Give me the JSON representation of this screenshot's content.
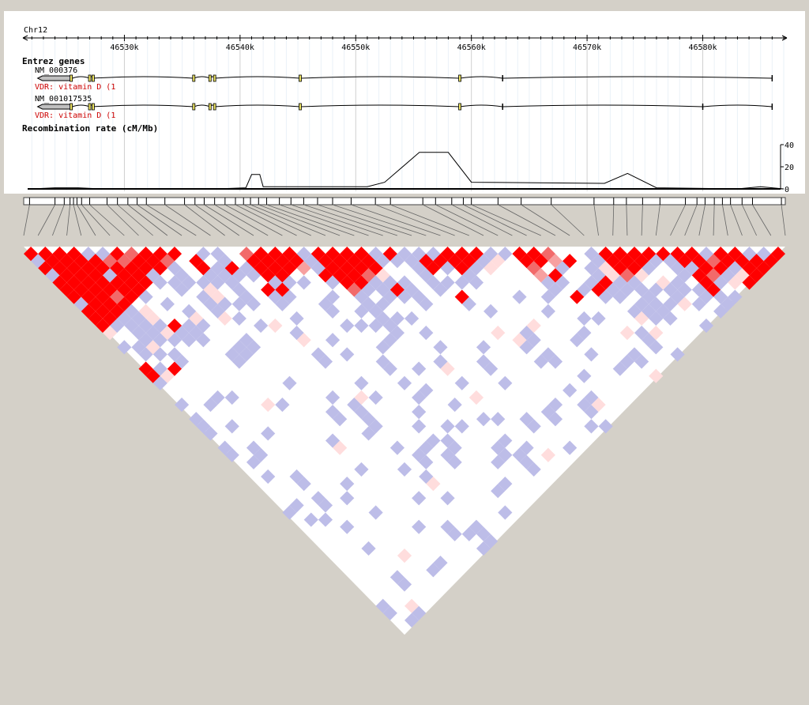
{
  "chromosome": "Chr12",
  "axis": {
    "start_kb": 46521.5,
    "end_kb": 46587.0,
    "ticks": [
      {
        "kb": 46530,
        "label": "46530k"
      },
      {
        "kb": 46540,
        "label": "46540k"
      },
      {
        "kb": 46550,
        "label": "46550k"
      },
      {
        "kb": 46560,
        "label": "46560k"
      },
      {
        "kb": 46570,
        "label": "46570k"
      },
      {
        "kb": 46580,
        "label": "46580k"
      }
    ]
  },
  "genes_track": {
    "title": "Entrez genes",
    "transcripts": [
      {
        "id": "NM_000376",
        "gene_label": "VDR: vitamin D (1",
        "start_kb": 46522.5,
        "end_kb": 46586.0,
        "utr_kb": [
          46522.5,
          46525.5
        ],
        "exons_kb": [
          46525.4,
          46527.0,
          46527.3,
          46536.0,
          46537.4,
          46537.8,
          46545.2,
          46559.0,
          46562.7,
          46586.0
        ]
      },
      {
        "id": "NM_001017535",
        "gene_label": "VDR: vitamin D (1",
        "start_kb": 46522.5,
        "end_kb": 46586.0,
        "utr_kb": [
          46522.5,
          46525.5
        ],
        "exons_kb": [
          46525.4,
          46527.0,
          46527.3,
          46536.0,
          46537.4,
          46537.8,
          46545.2,
          46559.0,
          46562.7,
          46580.0,
          46586.0
        ]
      }
    ]
  },
  "recombination_track": {
    "title": "Recombination rate (cM/Mb)",
    "y_ticks": [
      {
        "value": 0,
        "label": "0"
      },
      {
        "value": 20,
        "label": "20"
      },
      {
        "value": 40,
        "label": "40"
      }
    ],
    "ymax": 40,
    "points": [
      [
        46522.0,
        0
      ],
      [
        46524.0,
        1
      ],
      [
        46526.0,
        1
      ],
      [
        46528.0,
        0
      ],
      [
        46538.0,
        0
      ],
      [
        46540.5,
        1
      ],
      [
        46541.0,
        13
      ],
      [
        46541.7,
        13
      ],
      [
        46542.0,
        2
      ],
      [
        46551.0,
        2
      ],
      [
        46552.5,
        6
      ],
      [
        46555.5,
        33
      ],
      [
        46558.0,
        33
      ],
      [
        46560.0,
        6
      ],
      [
        46571.5,
        5
      ],
      [
        46573.5,
        14
      ],
      [
        46576.0,
        1
      ],
      [
        46583.0,
        0
      ],
      [
        46585.0,
        2
      ],
      [
        46587.0,
        0
      ]
    ]
  },
  "snp_positions_kb": [
    46521.8,
    46524.0,
    46524.8,
    46525.3,
    46525.6,
    46525.9,
    46526.3,
    46527.0,
    46528.5,
    46529.4,
    46530.3,
    46531.1,
    46531.9,
    46533.5,
    46535.2,
    46536.1,
    46536.9,
    46537.8,
    46538.7,
    46539.6,
    46540.3,
    46540.9,
    46541.6,
    46542.3,
    46543.4,
    46544.4,
    46545.5,
    46546.7,
    46548.0,
    46549.6,
    46551.7,
    46553.0,
    46555.8,
    46556.9,
    46558.3,
    46559.3,
    46560.0,
    46562.3,
    46564.3,
    46566.9,
    46570.6,
    46572.3,
    46573.4,
    46574.8,
    46576.3,
    46578.5,
    46579.5,
    46580.2,
    46581.0,
    46581.7,
    46582.4,
    46583.4,
    46584.3,
    46586.8
  ],
  "ld_colors": {
    "strong": "#ff0000",
    "weak": "#bdbde8",
    "none": "#ffffff",
    "blend_low": "#ffdddd"
  }
}
